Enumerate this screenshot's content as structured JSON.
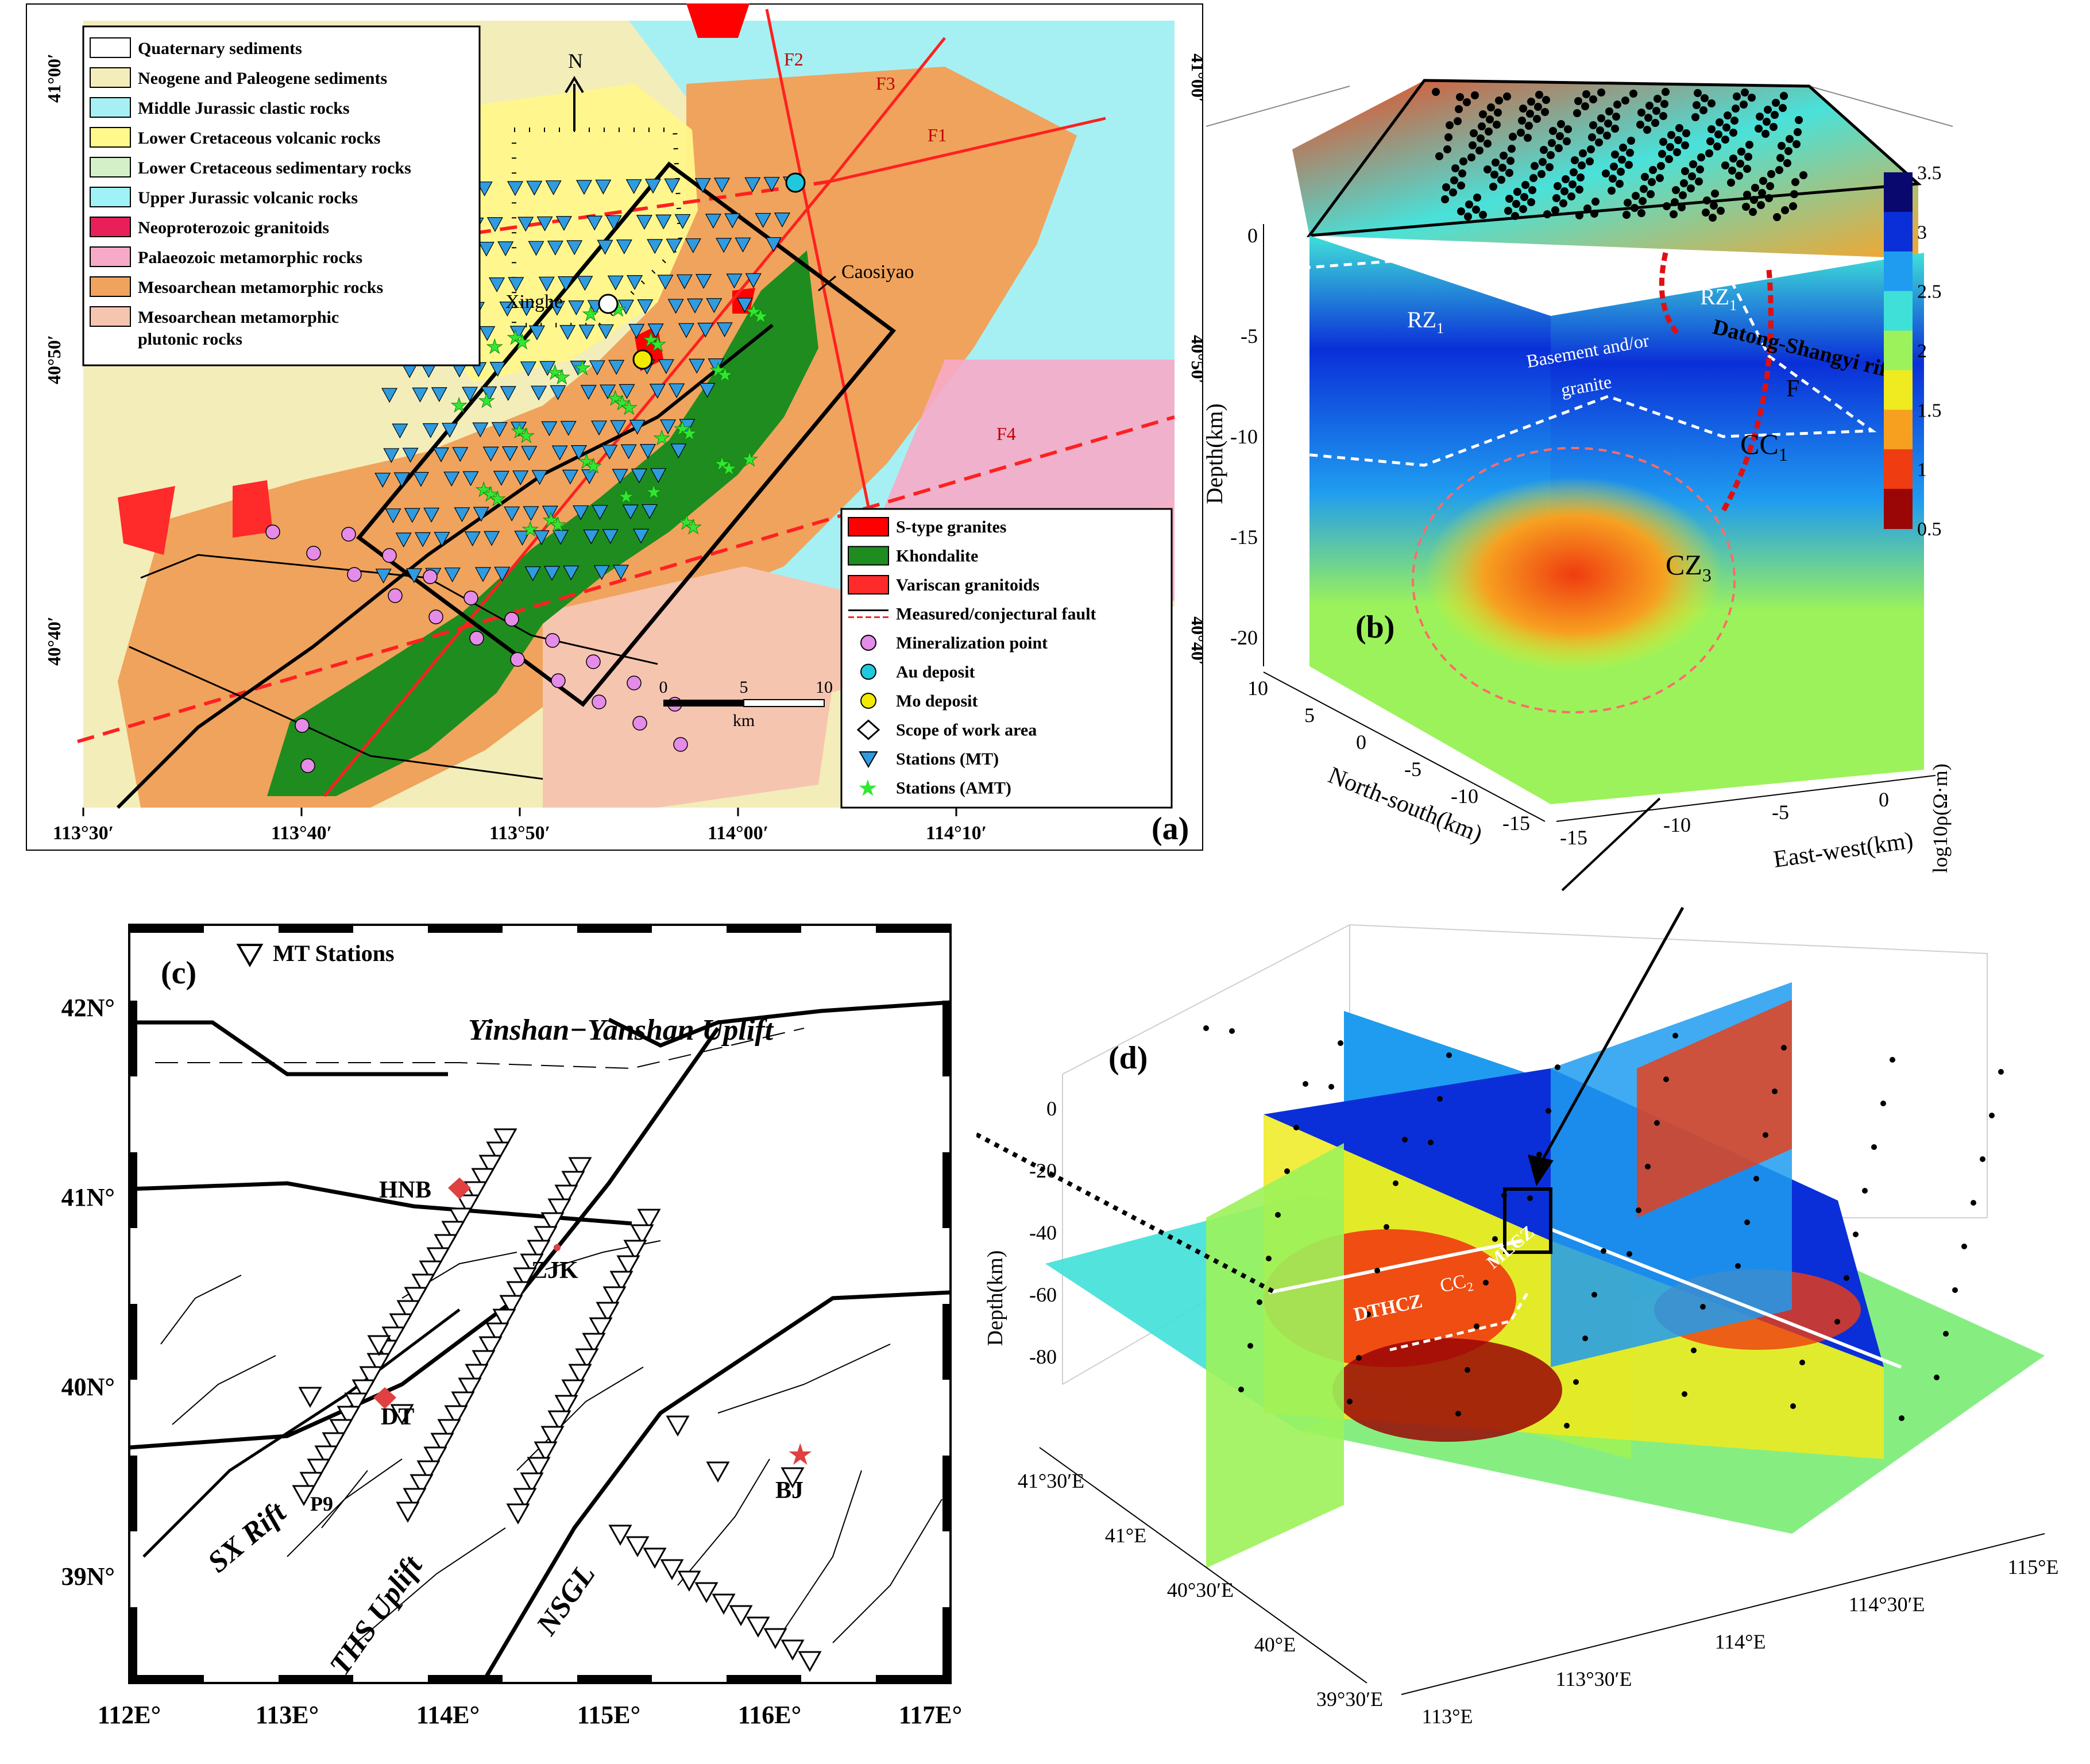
{
  "panel_a": {
    "tag": "(a)",
    "north": "N",
    "legend_top": [
      {
        "label": "Quaternary sediments",
        "color": "#ffffff"
      },
      {
        "label": "Neogene and Paleogene sediments",
        "color": "#f3edb9"
      },
      {
        "label": "Middle Jurassic clastic rocks",
        "color": "#a6f0f3"
      },
      {
        "label": "Lower Cretaceous volcanic rocks",
        "color": "#fff88a"
      },
      {
        "label": "Lower Cretaceous sedimentary rocks",
        "color": "#d3f0c8"
      },
      {
        "label": "Upper Jurassic volcanic rocks",
        "color": "#9ff2f5"
      },
      {
        "label": "Neoproterozoic granitoids",
        "color": "#e8205a"
      },
      {
        "label": "Palaeozoic metamorphic rocks",
        "color": "#f7aac8"
      },
      {
        "label": "Mesoarchean metamorphic rocks",
        "color": "#f0a35c"
      },
      {
        "label": "Mesoarchean metamorphic",
        "label2": "plutonic rocks",
        "color": "#f6c5b0"
      }
    ],
    "legend_bottom": [
      {
        "label": "S-type granites",
        "color": "#ff0000"
      },
      {
        "label": "Khondalite",
        "color": "#1f8c1f"
      },
      {
        "label": "Variscan granitoids",
        "color": "#ff2a2a"
      },
      {
        "label": "Measured/conjectural fault",
        "color": "#000000"
      },
      {
        "label": "Mineralization point",
        "color": "#e58be8"
      },
      {
        "label": "Au deposit",
        "color": "#20c8dc"
      },
      {
        "label": "Mo deposit",
        "color": "#f2ea00"
      },
      {
        "label": "Scope of work area",
        "color": "#000000"
      },
      {
        "label": "Stations (MT)",
        "color": "#2f9be0"
      },
      {
        "label": "Stations (AMT)",
        "color": "#33e633"
      }
    ],
    "faults": [
      "F2",
      "F3",
      "F1",
      "F4"
    ],
    "places": [
      "Xinghe",
      "Caosiyao"
    ],
    "lon_ticks": [
      "113°30′",
      "113°40′",
      "113°50′",
      "114°00′",
      "114°10′"
    ],
    "lat_ticks_left": [
      "41°00′",
      "40°50′",
      "40°40′"
    ],
    "lat_ticks_right": [
      "41°00′",
      "40°50′",
      "40°40′"
    ],
    "scalebar": {
      "ticks": [
        "0",
        "5",
        "10"
      ],
      "unit": "km"
    }
  },
  "panel_b": {
    "tag": "(b)",
    "ylabel": "Depth(km)",
    "depth_ticks": [
      "0",
      "-5",
      "-10",
      "-15",
      "-20"
    ],
    "ns_label": "North-south(km)",
    "ns_ticks": [
      "10",
      "5",
      "0",
      "-5",
      "-10",
      "-15"
    ],
    "ew_label": "East-west(km)",
    "ew_ticks": [
      "-15",
      "-10",
      "-5",
      "0"
    ],
    "anomaly_labels": [
      "RZ",
      "RZ",
      "CC",
      "CZ"
    ],
    "anomaly_subs": [
      "1",
      "1",
      "1",
      "3"
    ],
    "basement_line1": "Basement and/or",
    "basement_line2": "granite",
    "rift_label": "Datong-Shangyi rift",
    "fault_label": "F"
  },
  "colorbar": {
    "ticks": [
      "3.5",
      "3",
      "2.5",
      "2",
      "1.5",
      "1",
      "0.5"
    ],
    "label": "log10ρ(Ω·m)",
    "colors": [
      "#08086e",
      "#0a2fd8",
      "#1f9cf0",
      "#3fe0d8",
      "#9cf25a",
      "#f0ea20",
      "#f7a020",
      "#ef3c10",
      "#9a0606"
    ]
  },
  "panel_c": {
    "tag": "(c)",
    "legend": "MT Stations",
    "lat_ticks": [
      "42N°",
      "41N°",
      "40N°",
      "39N°"
    ],
    "lon_ticks": [
      "112E°",
      "113E°",
      "114E°",
      "115E°",
      "116E°",
      "117E°"
    ],
    "labels": [
      "Yinshan−Yanshan Uplift",
      "SX Rift",
      "THS Uplift",
      "NSGL"
    ],
    "cities": [
      "HNB",
      "ZJK",
      "DT",
      "BJ",
      "P9"
    ]
  },
  "panel_d": {
    "tag": "(d)",
    "ylabel": "Depth(km)",
    "depth_ticks": [
      "0",
      "-20",
      "-40",
      "-60",
      "-80"
    ],
    "lat_ticks": [
      "41°30′E",
      "41°E",
      "40°30′E",
      "40°E",
      "39°30′E"
    ],
    "lon_ticks": [
      "113°E",
      "113°30′E",
      "114°E",
      "114°30′E",
      "115°E"
    ],
    "anomalies": [
      "DTHCZ",
      "CC",
      "MLCZ"
    ],
    "cc_sub": "2"
  }
}
